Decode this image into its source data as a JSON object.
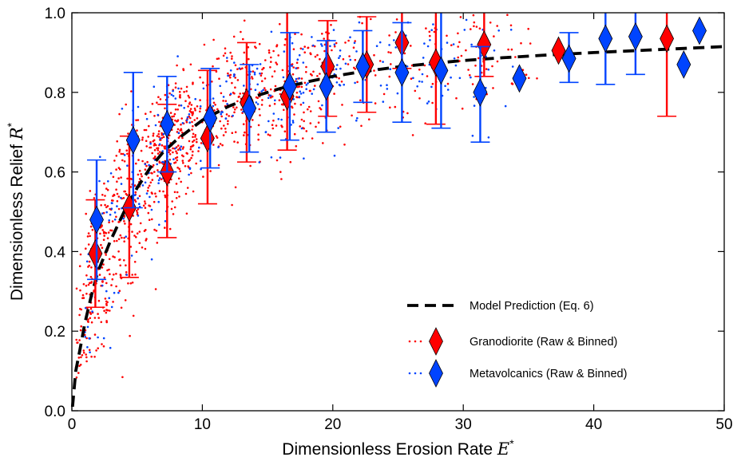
{
  "chart_data": {
    "type": "scatter",
    "xlabel": "Dimensionless Erosion Rate",
    "xlabel_symbol": "E",
    "ylabel": "Dimensionless Relief",
    "ylabel_symbol": "R",
    "symbol_superscript": "*",
    "xlim": [
      0,
      50
    ],
    "ylim": [
      0.0,
      1.0
    ],
    "x_ticks": [
      "0",
      "10",
      "20",
      "30",
      "40",
      "50"
    ],
    "y_ticks": [
      "0.0",
      "0.2",
      "0.4",
      "0.6",
      "0.8",
      "1.0"
    ],
    "legend_position": "lower-right",
    "grid": false,
    "colors": {
      "granodiorite": "#ff0000",
      "metavolcanics": "#0044ff",
      "model": "#000000"
    },
    "model": {
      "name": "Model Prediction (Eq. 6)",
      "style": "dashed",
      "x": [
        0.05,
        0.3,
        0.6,
        1,
        1.5,
        2,
        3,
        4,
        5,
        6,
        7,
        8,
        10,
        12,
        14,
        16,
        18,
        20,
        22,
        25,
        28,
        30,
        33,
        36,
        40,
        44,
        48,
        50
      ],
      "y": [
        0.01,
        0.1,
        0.15,
        0.22,
        0.29,
        0.35,
        0.43,
        0.5,
        0.56,
        0.61,
        0.65,
        0.68,
        0.73,
        0.765,
        0.79,
        0.81,
        0.826,
        0.84,
        0.851,
        0.864,
        0.874,
        0.88,
        0.887,
        0.893,
        0.9,
        0.906,
        0.912,
        0.915
      ]
    },
    "binned_series": [
      {
        "name": "Granodiorite (Raw & Binned)",
        "marker": "diamond",
        "points": [
          {
            "x": 1.8,
            "y": 0.395,
            "lo": 0.26,
            "hi": 0.53
          },
          {
            "x": 4.4,
            "y": 0.51,
            "lo": 0.335,
            "hi": 0.69
          },
          {
            "x": 7.3,
            "y": 0.6,
            "lo": 0.435,
            "hi": 0.77
          },
          {
            "x": 10.4,
            "y": 0.685,
            "lo": 0.52,
            "hi": 0.855
          },
          {
            "x": 13.4,
            "y": 0.775,
            "lo": 0.625,
            "hi": 0.925
          },
          {
            "x": 16.5,
            "y": 0.79,
            "lo": 0.655,
            "hi": 1.0
          },
          {
            "x": 19.6,
            "y": 0.865,
            "lo": 0.74,
            "hi": 0.98
          },
          {
            "x": 22.6,
            "y": 0.87,
            "lo": 0.75,
            "hi": 0.99
          },
          {
            "x": 25.3,
            "y": 0.925,
            "lo": 0.86,
            "hi": 1.0
          },
          {
            "x": 27.9,
            "y": 0.875,
            "lo": 0.72,
            "hi": 1.0
          },
          {
            "x": 31.6,
            "y": 0.92,
            "lo": 0.84,
            "hi": 1.0
          },
          {
            "x": 37.3,
            "y": 0.905,
            "lo": 0.905,
            "hi": 0.905
          },
          {
            "x": 45.6,
            "y": 0.935,
            "lo": 0.74,
            "hi": 1.0
          }
        ]
      },
      {
        "name": "Metavolcanics (Raw & Binned)",
        "marker": "diamond",
        "points": [
          {
            "x": 1.9,
            "y": 0.48,
            "lo": 0.33,
            "hi": 0.63
          },
          {
            "x": 4.7,
            "y": 0.68,
            "lo": 0.51,
            "hi": 0.85
          },
          {
            "x": 7.3,
            "y": 0.72,
            "lo": 0.6,
            "hi": 0.84
          },
          {
            "x": 10.6,
            "y": 0.735,
            "lo": 0.61,
            "hi": 0.86
          },
          {
            "x": 13.6,
            "y": 0.76,
            "lo": 0.65,
            "hi": 0.87
          },
          {
            "x": 16.7,
            "y": 0.815,
            "lo": 0.68,
            "hi": 0.95
          },
          {
            "x": 19.5,
            "y": 0.815,
            "lo": 0.7,
            "hi": 0.93
          },
          {
            "x": 22.3,
            "y": 0.865,
            "lo": 0.775,
            "hi": 0.955
          },
          {
            "x": 25.3,
            "y": 0.85,
            "lo": 0.725,
            "hi": 0.975
          },
          {
            "x": 28.3,
            "y": 0.855,
            "lo": 0.71,
            "hi": 1.0
          },
          {
            "x": 31.3,
            "y": 0.8,
            "lo": 0.675,
            "hi": 0.915
          },
          {
            "x": 34.3,
            "y": 0.835,
            "lo": 0.835,
            "hi": 0.835
          },
          {
            "x": 38.1,
            "y": 0.885,
            "lo": 0.825,
            "hi": 0.95
          },
          {
            "x": 40.9,
            "y": 0.935,
            "lo": 0.82,
            "hi": 1.0
          },
          {
            "x": 43.2,
            "y": 0.94,
            "lo": 0.845,
            "hi": 1.0
          },
          {
            "x": 46.9,
            "y": 0.87,
            "lo": 0.87,
            "hi": 0.87
          },
          {
            "x": 48.1,
            "y": 0.955,
            "lo": 0.955,
            "hi": 0.955
          }
        ]
      }
    ],
    "raw_scatter": {
      "granodiorite_points": 1100,
      "metavolcanics_points": 330
    }
  }
}
